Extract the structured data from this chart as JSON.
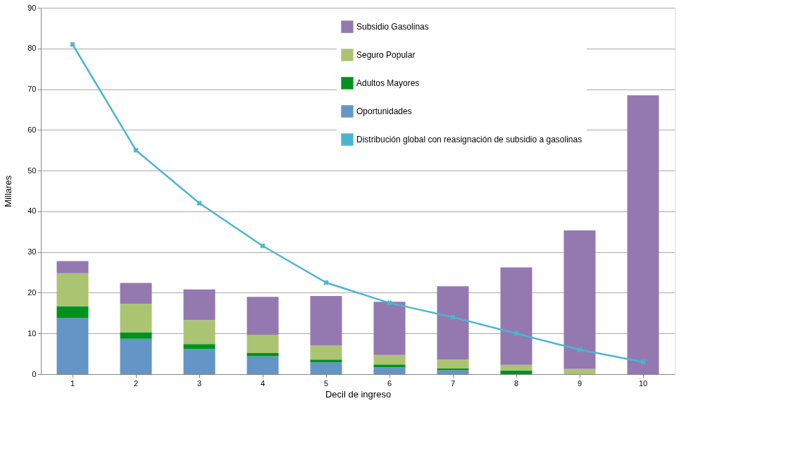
{
  "chart_data": {
    "type": "bar",
    "stacked": true,
    "xlabel": "Decil de ingreso",
    "ylabel": "Millares",
    "categories": [
      "1",
      "2",
      "3",
      "4",
      "5",
      "6",
      "7",
      "8",
      "9",
      "10"
    ],
    "ylim": [
      0,
      90
    ],
    "yticks": [
      0,
      10,
      20,
      30,
      40,
      50,
      60,
      70,
      80,
      90
    ],
    "grid": "y",
    "legend": "top",
    "series": [
      {
        "name": "Oportunidades",
        "color": "#6395c7",
        "values": [
          13.8,
          8.7,
          6.2,
          4.4,
          2.9,
          1.7,
          1.0,
          0,
          0,
          0
        ]
      },
      {
        "name": "Adultos Mayores",
        "color": "#00921e",
        "values": [
          2.9,
          1.6,
          1.2,
          0.8,
          0.7,
          0.7,
          0.4,
          0.9,
          0,
          0
        ]
      },
      {
        "name": "Seguro Popular",
        "color": "#abc472",
        "values": [
          8.1,
          7.0,
          5.9,
          4.5,
          3.5,
          2.3,
          2.2,
          1.4,
          1.3,
          0
        ]
      },
      {
        "name": "Subsidio Gasolinas",
        "color": "#9479b0",
        "values": [
          3.0,
          5.1,
          7.5,
          9.3,
          12.1,
          13.1,
          18.0,
          23.9,
          34.0,
          68.5
        ]
      },
      {
        "name": "Distribución global con reasignación de subsidio a gasolinas",
        "type": "line",
        "marker": "cross",
        "color": "#4bb5cf",
        "values": [
          81,
          55,
          42,
          31.5,
          22.5,
          17.5,
          14,
          10,
          6,
          3
        ]
      }
    ]
  }
}
